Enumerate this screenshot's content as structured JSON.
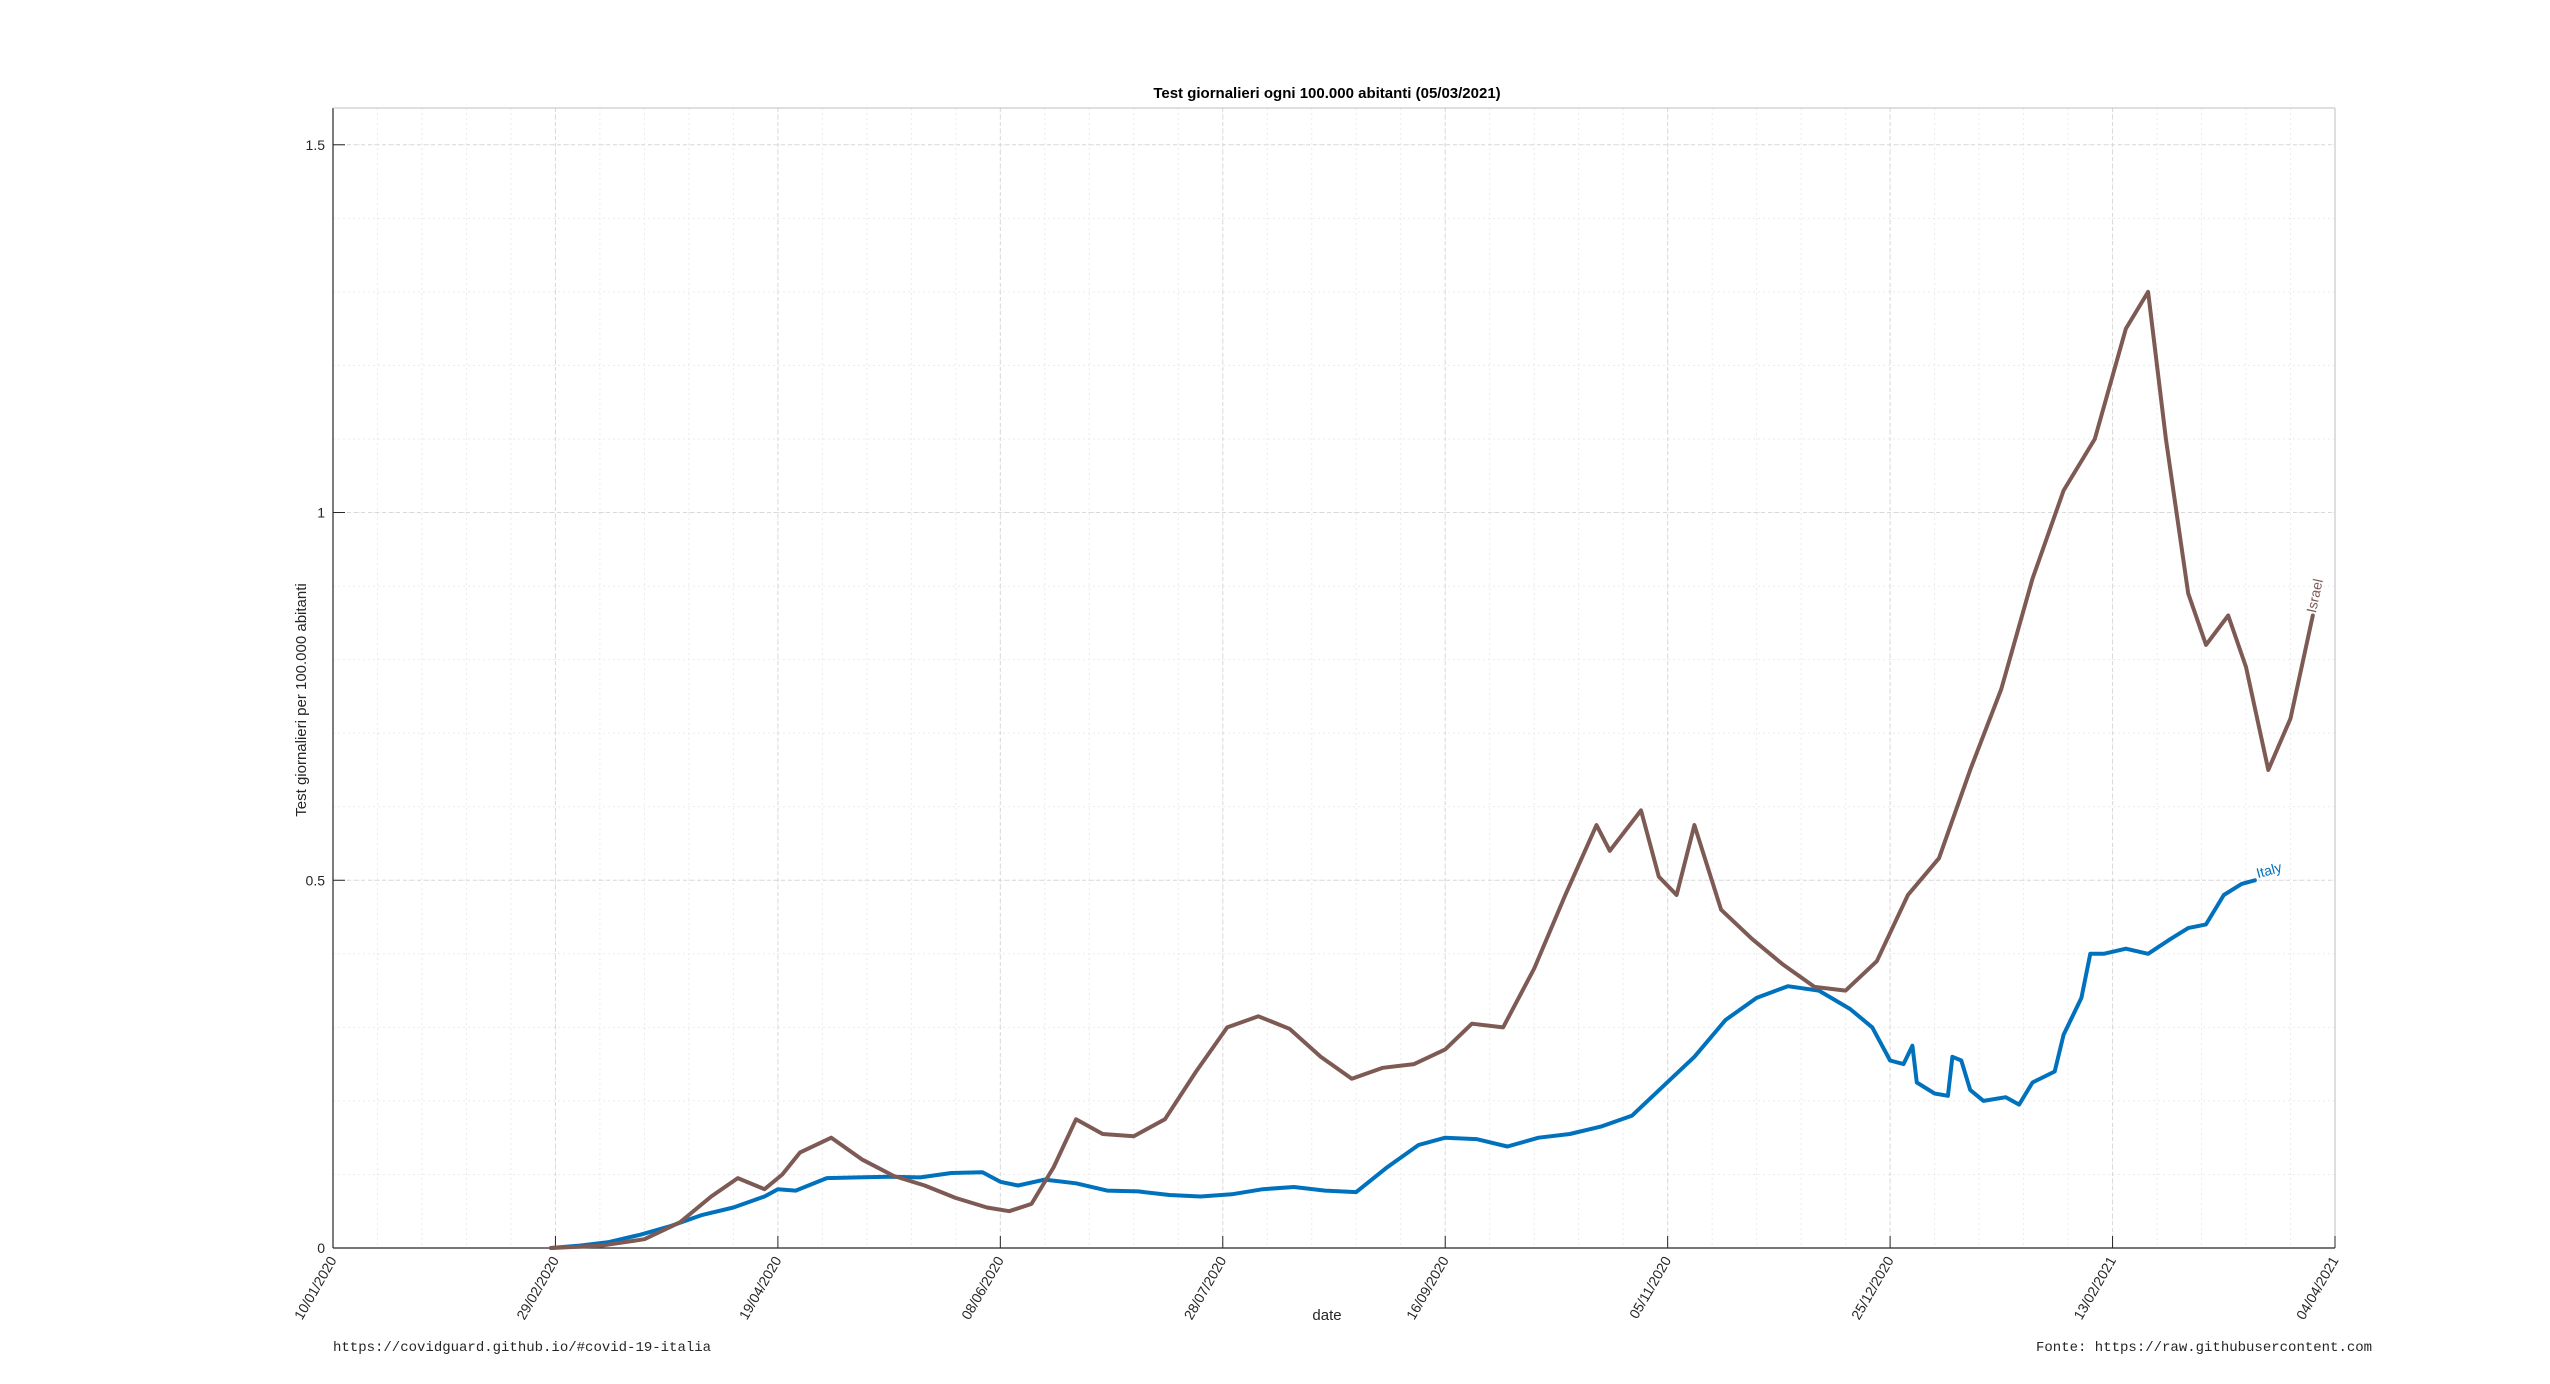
{
  "footer": {
    "left": "https://covidguard.github.io/#covid-19-italia",
    "right": "Fonte: https://raw.githubusercontent.com"
  },
  "chart_data": {
    "type": "line",
    "title": "Test giornalieri ogni 100.000 abitanti (05/03/2021)",
    "xlabel": "date",
    "ylabel": "Test giornalieri per 100.000 abitanti",
    "xlim": [
      "2020-01-10",
      "2021-04-04"
    ],
    "ylim": [
      0,
      1.55
    ],
    "x_ticks": [
      "2020-01-10",
      "2020-02-29",
      "2020-04-19",
      "2020-06-08",
      "2020-07-28",
      "2020-09-16",
      "2020-11-05",
      "2020-12-25",
      "2021-02-13",
      "2021-04-04"
    ],
    "x_tick_labels": [
      "10/01/2020",
      "29/02/2020",
      "19/04/2020",
      "08/06/2020",
      "28/07/2020",
      "16/09/2020",
      "05/11/2020",
      "25/12/2020",
      "13/02/2021",
      "04/04/2021"
    ],
    "y_ticks": [
      0,
      0.5,
      1,
      1.5
    ],
    "y_tick_labels": [
      "0",
      "0.5",
      "1",
      "1.5"
    ],
    "grid": true,
    "minor_grid": true,
    "series": [
      {
        "name": "Italy",
        "color": "#0072BD",
        "points": [
          [
            "2020-02-28",
            0.0
          ],
          [
            "2020-03-05",
            0.003
          ],
          [
            "2020-03-12",
            0.008
          ],
          [
            "2020-03-19",
            0.018
          ],
          [
            "2020-03-26",
            0.03
          ],
          [
            "2020-04-02",
            0.045
          ],
          [
            "2020-04-09",
            0.055
          ],
          [
            "2020-04-16",
            0.07
          ],
          [
            "2020-04-19",
            0.08
          ],
          [
            "2020-04-23",
            0.078
          ],
          [
            "2020-04-30",
            0.095
          ],
          [
            "2020-05-07",
            0.096
          ],
          [
            "2020-05-14",
            0.097
          ],
          [
            "2020-05-21",
            0.096
          ],
          [
            "2020-05-28",
            0.102
          ],
          [
            "2020-06-04",
            0.103
          ],
          [
            "2020-06-08",
            0.09
          ],
          [
            "2020-06-12",
            0.085
          ],
          [
            "2020-06-18",
            0.093
          ],
          [
            "2020-06-25",
            0.088
          ],
          [
            "2020-07-02",
            0.078
          ],
          [
            "2020-07-09",
            0.077
          ],
          [
            "2020-07-16",
            0.072
          ],
          [
            "2020-07-23",
            0.07
          ],
          [
            "2020-07-30",
            0.073
          ],
          [
            "2020-08-06",
            0.08
          ],
          [
            "2020-08-13",
            0.083
          ],
          [
            "2020-08-20",
            0.078
          ],
          [
            "2020-08-27",
            0.076
          ],
          [
            "2020-09-03",
            0.11
          ],
          [
            "2020-09-10",
            0.14
          ],
          [
            "2020-09-16",
            0.15
          ],
          [
            "2020-09-23",
            0.148
          ],
          [
            "2020-09-30",
            0.138
          ],
          [
            "2020-10-07",
            0.15
          ],
          [
            "2020-10-14",
            0.155
          ],
          [
            "2020-10-21",
            0.165
          ],
          [
            "2020-10-28",
            0.18
          ],
          [
            "2020-11-04",
            0.22
          ],
          [
            "2020-11-11",
            0.26
          ],
          [
            "2020-11-18",
            0.31
          ],
          [
            "2020-11-25",
            0.34
          ],
          [
            "2020-12-02",
            0.356
          ],
          [
            "2020-12-09",
            0.35
          ],
          [
            "2020-12-16",
            0.325
          ],
          [
            "2020-12-21",
            0.3
          ],
          [
            "2020-12-25",
            0.255
          ],
          [
            "2020-12-28",
            0.25
          ],
          [
            "2020-12-30",
            0.275
          ],
          [
            "2020-12-31",
            0.225
          ],
          [
            "2021-01-04",
            0.21
          ],
          [
            "2021-01-07",
            0.207
          ],
          [
            "2021-01-08",
            0.26
          ],
          [
            "2021-01-10",
            0.255
          ],
          [
            "2021-01-12",
            0.215
          ],
          [
            "2021-01-15",
            0.2
          ],
          [
            "2021-01-20",
            0.205
          ],
          [
            "2021-01-23",
            0.195
          ],
          [
            "2021-01-26",
            0.225
          ],
          [
            "2021-01-31",
            0.24
          ],
          [
            "2021-02-02",
            0.29
          ],
          [
            "2021-02-06",
            0.34
          ],
          [
            "2021-02-08",
            0.4
          ],
          [
            "2021-02-11",
            0.4
          ],
          [
            "2021-02-16",
            0.407
          ],
          [
            "2021-02-21",
            0.4
          ],
          [
            "2021-02-26",
            0.42
          ],
          [
            "2021-03-02",
            0.435
          ],
          [
            "2021-03-06",
            0.44
          ],
          [
            "2021-03-10",
            0.48
          ],
          [
            "2021-03-14",
            0.495
          ],
          [
            "2021-03-17",
            0.5
          ]
        ]
      },
      {
        "name": "Israel",
        "color": "#7E5A55",
        "points": [
          [
            "2020-02-28",
            0.0
          ],
          [
            "2020-03-10",
            0.003
          ],
          [
            "2020-03-20",
            0.012
          ],
          [
            "2020-03-28",
            0.035
          ],
          [
            "2020-04-04",
            0.07
          ],
          [
            "2020-04-10",
            0.095
          ],
          [
            "2020-04-16",
            0.08
          ],
          [
            "2020-04-20",
            0.1
          ],
          [
            "2020-04-24",
            0.13
          ],
          [
            "2020-05-01",
            0.15
          ],
          [
            "2020-05-08",
            0.12
          ],
          [
            "2020-05-15",
            0.098
          ],
          [
            "2020-05-22",
            0.085
          ],
          [
            "2020-05-29",
            0.068
          ],
          [
            "2020-06-05",
            0.055
          ],
          [
            "2020-06-10",
            0.05
          ],
          [
            "2020-06-15",
            0.06
          ],
          [
            "2020-06-20",
            0.11
          ],
          [
            "2020-06-25",
            0.175
          ],
          [
            "2020-07-01",
            0.155
          ],
          [
            "2020-07-08",
            0.152
          ],
          [
            "2020-07-15",
            0.175
          ],
          [
            "2020-07-22",
            0.24
          ],
          [
            "2020-07-29",
            0.3
          ],
          [
            "2020-08-05",
            0.315
          ],
          [
            "2020-08-12",
            0.298
          ],
          [
            "2020-08-19",
            0.26
          ],
          [
            "2020-08-26",
            0.23
          ],
          [
            "2020-09-02",
            0.245
          ],
          [
            "2020-09-09",
            0.25
          ],
          [
            "2020-09-16",
            0.27
          ],
          [
            "2020-09-22",
            0.305
          ],
          [
            "2020-09-29",
            0.3
          ],
          [
            "2020-10-06",
            0.38
          ],
          [
            "2020-10-13",
            0.48
          ],
          [
            "2020-10-20",
            0.575
          ],
          [
            "2020-10-23",
            0.54
          ],
          [
            "2020-10-30",
            0.595
          ],
          [
            "2020-11-03",
            0.505
          ],
          [
            "2020-11-07",
            0.48
          ],
          [
            "2020-11-11",
            0.575
          ],
          [
            "2020-11-17",
            0.46
          ],
          [
            "2020-11-24",
            0.42
          ],
          [
            "2020-12-01",
            0.385
          ],
          [
            "2020-12-08",
            0.355
          ],
          [
            "2020-12-15",
            0.35
          ],
          [
            "2020-12-22",
            0.39
          ],
          [
            "2020-12-29",
            0.48
          ],
          [
            "2021-01-05",
            0.53
          ],
          [
            "2021-01-12",
            0.65
          ],
          [
            "2021-01-19",
            0.76
          ],
          [
            "2021-01-26",
            0.91
          ],
          [
            "2021-02-02",
            1.03
          ],
          [
            "2021-02-09",
            1.1
          ],
          [
            "2021-02-16",
            1.25
          ],
          [
            "2021-02-21",
            1.3
          ],
          [
            "2021-02-25",
            1.1
          ],
          [
            "2021-03-02",
            0.89
          ],
          [
            "2021-03-06",
            0.82
          ],
          [
            "2021-03-11",
            0.86
          ],
          [
            "2021-03-15",
            0.79
          ],
          [
            "2021-03-20",
            0.65
          ],
          [
            "2021-03-25",
            0.72
          ],
          [
            "2021-03-30",
            0.86
          ]
        ]
      }
    ]
  }
}
